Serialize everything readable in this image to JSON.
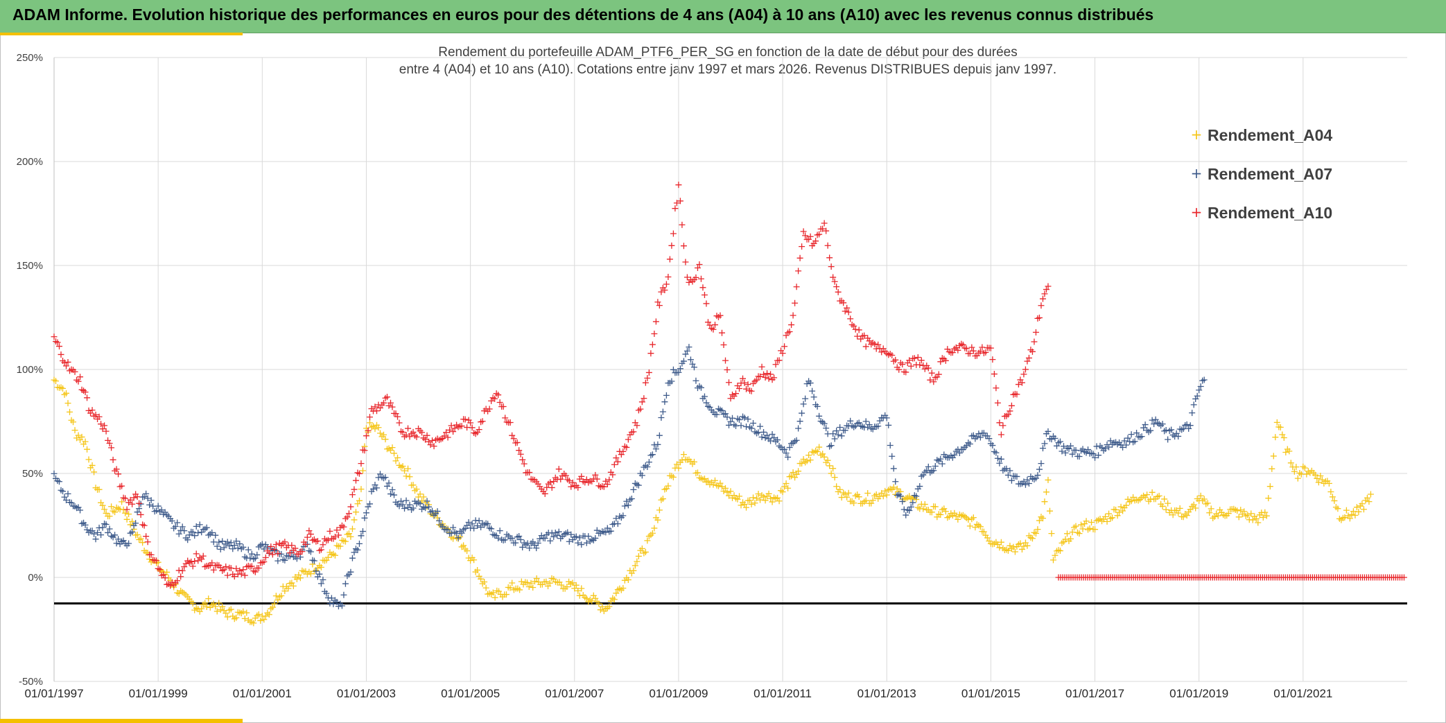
{
  "header": {
    "title": "ADAM Informe. Evolution historique des performances en euros pour des détentions de 4 ans (A04) à 10 ans (A10) avec les revenus connus distribués"
  },
  "colors": {
    "banner": "#7cc47f",
    "accent": "#f4c000",
    "A04": "#f5c518",
    "A07": "#3d5a8a",
    "A10": "#e8262b"
  },
  "chart_data": {
    "type": "scatter",
    "title": "",
    "subtitle_lines": [
      "Rendement du portefeuille ADAM_PTF6_PER_SG  en fonction de la date de début pour des durées",
      "entre 4 (A04) et 10 ans (A10). Cotations entre janv 1997 et mars 2026. Revenus DISTRIBUES depuis janv 1997."
    ],
    "xlabel": "",
    "ylabel": "",
    "y_ticks": [
      "250%",
      "200%",
      "150%",
      "100%",
      "50%",
      "0%",
      "-50%"
    ],
    "ylim": [
      -50,
      250
    ],
    "x_ticks": [
      "01/01/1997",
      "01/01/1999",
      "01/01/2001",
      "01/01/2003",
      "01/01/2005",
      "01/01/2007",
      "01/01/2009",
      "01/01/2011",
      "01/01/2013",
      "01/01/2015",
      "01/01/2017",
      "01/01/2019",
      "01/01/2021"
    ],
    "xlim": [
      1997.0,
      2023.0
    ],
    "grid": true,
    "legend_position": "top-right",
    "marker": "+",
    "reference_line_y": -12.5,
    "series": [
      {
        "name": "Rendement_A04",
        "color": "#f5c518",
        "x": [
          1997.0,
          1997.2,
          1997.4,
          1997.6,
          1997.8,
          1998.0,
          1998.3,
          1998.6,
          1998.8,
          1999.0,
          1999.2,
          1999.5,
          1999.8,
          2000.0,
          2000.3,
          2000.6,
          2000.9,
          2001.1,
          2001.4,
          2001.7,
          2002.0,
          2002.3,
          2002.5,
          2002.7,
          2002.9,
          2003.0,
          2003.2,
          2003.5,
          2003.8,
          2004.0,
          2004.3,
          2004.5,
          2004.7,
          2004.9,
          2005.1,
          2005.4,
          2005.8,
          2006.2,
          2006.6,
          2007.0,
          2007.3,
          2007.6,
          2007.8,
          2008.0,
          2008.3,
          2008.5,
          2008.7,
          2008.9,
          2009.1,
          2009.4,
          2009.7,
          2010.0,
          2010.3,
          2010.6,
          2010.9,
          2011.1,
          2011.4,
          2011.7,
          2011.9,
          2012.1,
          2012.4,
          2012.7,
          2013.0,
          2013.3,
          2013.6,
          2013.9,
          2014.2,
          2014.5,
          2014.8,
          2015.0,
          2015.3,
          2015.6,
          2015.8,
          2016.0,
          2016.1,
          2016.2,
          2016.5,
          2016.8,
          2017.0,
          2017.3,
          2017.6,
          2017.9,
          2018.2,
          2018.5,
          2018.8,
          2019.0,
          2019.3,
          2019.6,
          2019.9,
          2020.1,
          2020.3,
          2020.5,
          2020.7,
          2020.9,
          2021.1,
          2021.3,
          2021.5,
          2021.7,
          2021.9,
          2022.1,
          2022.3
        ],
        "y": [
          95,
          90,
          70,
          65,
          45,
          30,
          35,
          20,
          12,
          5,
          0,
          -10,
          -15,
          -12,
          -17,
          -18,
          -20,
          -17,
          -5,
          0,
          5,
          10,
          15,
          20,
          40,
          72,
          72,
          60,
          50,
          40,
          30,
          25,
          20,
          15,
          5,
          -10,
          -5,
          -3,
          -2,
          -5,
          -10,
          -15,
          -8,
          0,
          12,
          20,
          40,
          50,
          60,
          50,
          45,
          40,
          35,
          40,
          38,
          45,
          55,
          62,
          55,
          40,
          38,
          38,
          42,
          40,
          35,
          32,
          30,
          28,
          25,
          18,
          15,
          14,
          20,
          30,
          45,
          8,
          20,
          25,
          25,
          30,
          35,
          40,
          38,
          32,
          30,
          38,
          30,
          32,
          30,
          28,
          30,
          75,
          60,
          50,
          52,
          48,
          45,
          30,
          30,
          32,
          40
        ]
      },
      {
        "name": "Rendement_A07",
        "color": "#3d5a8a",
        "x": [
          1997.0,
          1997.2,
          1997.4,
          1997.6,
          1997.8,
          1998.0,
          1998.3,
          1998.5,
          1998.7,
          1998.9,
          1999.1,
          1999.3,
          1999.6,
          1999.9,
          2000.2,
          2000.5,
          2000.8,
          2001.0,
          2001.3,
          2001.6,
          2001.9,
          2002.1,
          2002.3,
          2002.5,
          2002.7,
          2002.9,
          2003.1,
          2003.3,
          2003.6,
          2003.9,
          2004.2,
          2004.5,
          2004.8,
          2005.0,
          2005.3,
          2005.6,
          2005.9,
          2006.2,
          2006.5,
          2006.8,
          2007.1,
          2007.4,
          2007.7,
          2007.9,
          2008.2,
          2008.4,
          2008.6,
          2008.8,
          2009.0,
          2009.2,
          2009.4,
          2009.7,
          2010.0,
          2010.3,
          2010.6,
          2010.9,
          2011.1,
          2011.3,
          2011.5,
          2011.7,
          2011.9,
          2012.1,
          2012.4,
          2012.7,
          2013.0,
          2013.2,
          2013.4,
          2013.7,
          2014.0,
          2014.3,
          2014.6,
          2014.9,
          2015.1,
          2015.3,
          2015.6,
          2015.9,
          2016.1,
          2016.4,
          2016.7,
          2017.0,
          2017.3,
          2017.6,
          2017.9,
          2018.2,
          2018.4,
          2018.6,
          2018.8,
          2019.0,
          2019.1
        ],
        "y": [
          48,
          40,
          35,
          25,
          20,
          25,
          15,
          20,
          40,
          35,
          30,
          25,
          20,
          25,
          15,
          15,
          10,
          15,
          10,
          10,
          15,
          0,
          -10,
          -15,
          5,
          20,
          40,
          50,
          35,
          35,
          35,
          25,
          20,
          25,
          25,
          20,
          18,
          15,
          20,
          20,
          18,
          20,
          22,
          30,
          45,
          55,
          65,
          95,
          100,
          110,
          90,
          80,
          75,
          75,
          70,
          65,
          60,
          70,
          95,
          80,
          65,
          70,
          75,
          72,
          78,
          40,
          30,
          50,
          55,
          60,
          65,
          70,
          60,
          50,
          45,
          50,
          70,
          62,
          60,
          60,
          65,
          65,
          70,
          75,
          68,
          70,
          72,
          90,
          95
        ]
      },
      {
        "name": "Rendement_A10",
        "color": "#e8262b",
        "x": [
          1997.0,
          1997.1,
          1997.3,
          1997.5,
          1997.7,
          1997.9,
          1998.0,
          1998.2,
          1998.4,
          1998.6,
          1998.8,
          1999.0,
          1999.2,
          1999.5,
          1999.8,
          2000.0,
          2000.3,
          2000.6,
          2000.9,
          2001.1,
          2001.4,
          2001.7,
          2001.9,
          2002.1,
          2002.3,
          2002.5,
          2002.7,
          2002.9,
          2003.1,
          2003.4,
          2003.7,
          2004.0,
          2004.3,
          2004.6,
          2004.9,
          2005.1,
          2005.3,
          2005.5,
          2005.8,
          2006.1,
          2006.4,
          2006.7,
          2007.0,
          2007.3,
          2007.6,
          2007.8,
          2008.0,
          2008.2,
          2008.4,
          2008.6,
          2008.8,
          2009.0,
          2009.1,
          2009.2,
          2009.4,
          2009.6,
          2009.8,
          2010.0,
          2010.2,
          2010.4,
          2010.6,
          2010.8,
          2011.0,
          2011.2,
          2011.4,
          2011.6,
          2011.8,
          2012.0,
          2012.2,
          2012.5,
          2012.8,
          2013.0,
          2013.3,
          2013.6,
          2013.9,
          2014.2,
          2014.5,
          2014.8,
          2015.0,
          2015.2,
          2015.4,
          2015.6,
          2015.8,
          2016.0,
          2016.1
        ],
        "y": [
          115,
          110,
          100,
          95,
          80,
          75,
          70,
          50,
          35,
          40,
          15,
          5,
          -5,
          5,
          10,
          5,
          3,
          2,
          5,
          12,
          15,
          12,
          20,
          15,
          20,
          22,
          35,
          55,
          80,
          85,
          70,
          70,
          65,
          70,
          75,
          70,
          80,
          90,
          70,
          50,
          40,
          50,
          45,
          48,
          45,
          55,
          65,
          75,
          95,
          130,
          145,
          190,
          160,
          140,
          150,
          120,
          125,
          85,
          95,
          90,
          100,
          95,
          110,
          125,
          165,
          160,
          170,
          140,
          130,
          115,
          110,
          110,
          100,
          105,
          95,
          110,
          110,
          108,
          110,
          70,
          85,
          95,
          110,
          135,
          140
        ]
      },
      {
        "name": "",
        "color": "#e8262b",
        "flat_segment": true,
        "x_start": 2016.3,
        "x_end": 2022.95,
        "y": 0
      }
    ]
  }
}
